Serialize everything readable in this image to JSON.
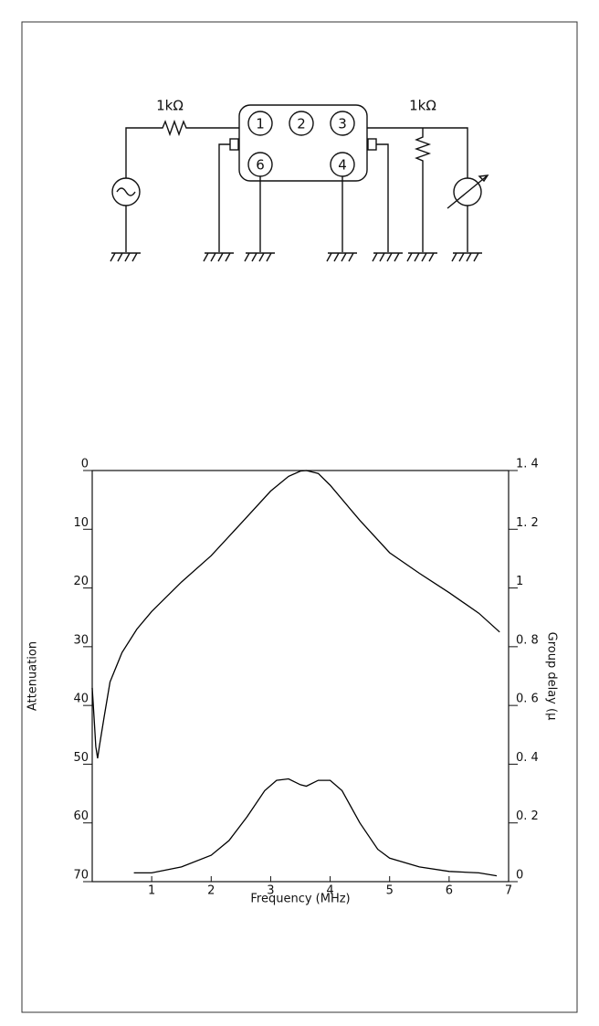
{
  "diagram": {
    "resistor_in_label": "1kΩ",
    "resistor_out_label": "1kΩ",
    "pins": [
      "1",
      "2",
      "3",
      "6",
      "4"
    ]
  },
  "chart_data": {
    "type": "line",
    "xlabel": "Frequency (MHz)",
    "ylabel": "Attenuation",
    "y2label": "Group delay (μ",
    "xlim": [
      0,
      7
    ],
    "xticks": [
      1,
      2,
      3,
      4,
      5,
      6,
      7
    ],
    "ylim": [
      70,
      0
    ],
    "yticks": [
      0,
      10,
      20,
      30,
      40,
      50,
      60,
      70
    ],
    "y2lim": [
      0,
      1.4
    ],
    "y2ticks": [
      {
        "value": 1.4,
        "label": "1. 4"
      },
      {
        "value": 1.2,
        "label": "1. 2"
      },
      1,
      {
        "value": 0.8,
        "label": "0. 8"
      },
      {
        "value": 0.6,
        "label": "0. 6"
      },
      {
        "value": 0.4,
        "label": "0. 4"
      },
      {
        "value": 0.2,
        "label": "0. 2"
      },
      0
    ],
    "series": [
      {
        "color": "#000000",
        "x": [
          0.0,
          0.03,
          0.06,
          0.09,
          0.12,
          0.2,
          0.3,
          0.5,
          0.75,
          1.0,
          1.5,
          2.0,
          2.5,
          3.0,
          3.3,
          3.5,
          3.6,
          3.8,
          4.0,
          4.5,
          5.0,
          5.5,
          6.0,
          6.5,
          6.85
        ],
        "values": [
          37,
          42,
          47,
          49,
          47,
          42,
          36,
          31,
          27,
          24,
          19,
          14.5,
          9,
          3.5,
          1,
          0.1,
          0,
          0.5,
          2.5,
          8.5,
          14,
          17.5,
          20.8,
          24.3,
          27.5
        ]
      },
      {
        "color": "#000000",
        "axis": "y2",
        "x": [
          0.7,
          1.0,
          1.5,
          2.0,
          2.3,
          2.6,
          2.9,
          3.1,
          3.3,
          3.5,
          3.6,
          3.8,
          4.0,
          4.2,
          4.5,
          4.8,
          5.0,
          5.5,
          6.0,
          6.5,
          6.8
        ],
        "values": [
          0.03,
          0.03,
          0.05,
          0.09,
          0.14,
          0.22,
          0.31,
          0.345,
          0.35,
          0.33,
          0.325,
          0.345,
          0.345,
          0.31,
          0.2,
          0.11,
          0.08,
          0.05,
          0.035,
          0.03,
          0.02
        ]
      }
    ]
  }
}
